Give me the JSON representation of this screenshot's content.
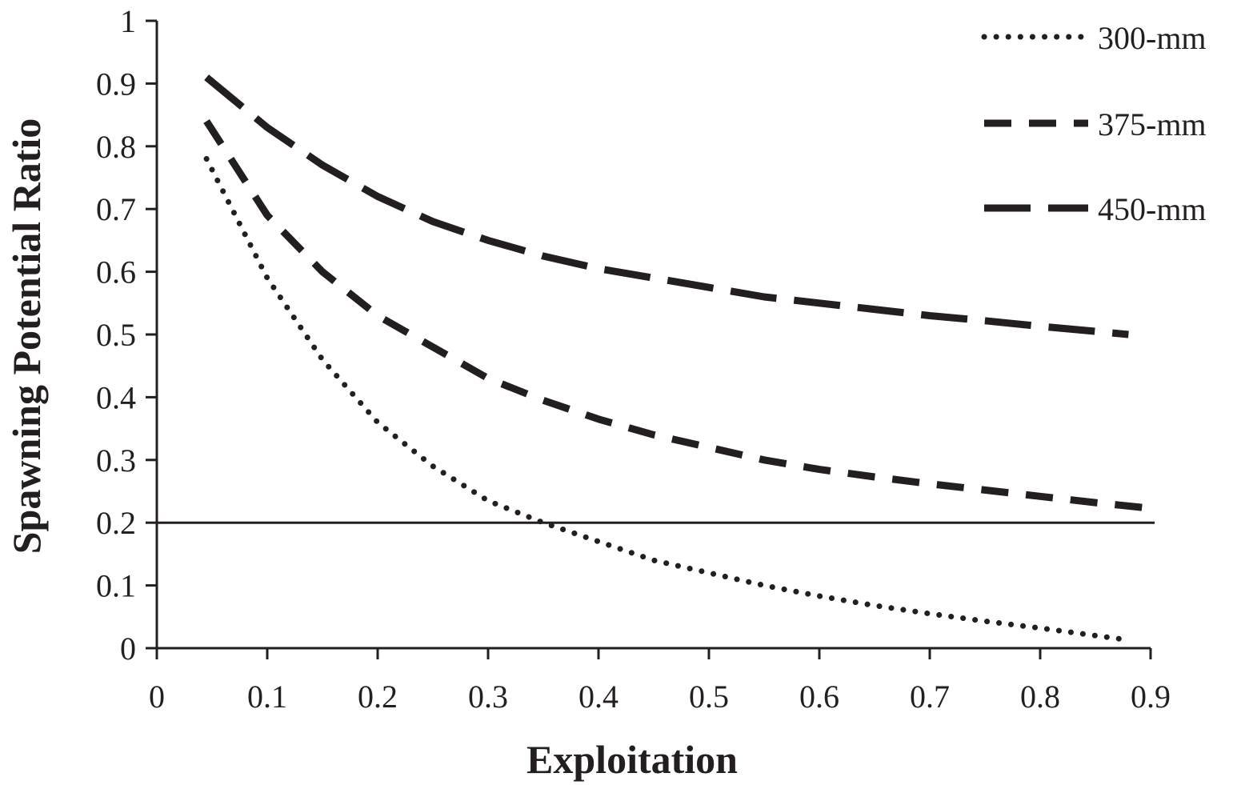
{
  "chart_data": {
    "type": "line",
    "xlabel": "Exploitation",
    "ylabel": "Spawning Potential Ratio",
    "xlim": [
      0,
      0.9
    ],
    "ylim": [
      0,
      1
    ],
    "x_ticks": [
      "0",
      "0.1",
      "0.2",
      "0.3",
      "0.4",
      "0.5",
      "0.6",
      "0.7",
      "0.8",
      "0.9"
    ],
    "y_ticks": [
      "0",
      "0.1",
      "0.2",
      "0.3",
      "0.4",
      "0.5",
      "0.6",
      "0.7",
      "0.8",
      "0.9",
      "1"
    ],
    "grid": false,
    "legend_position": "top-right",
    "reference_line": {
      "y": 0.2
    },
    "series": [
      {
        "name": "300-mm",
        "style": "dotted",
        "color": "#231f20",
        "x": [
          0.045,
          0.1,
          0.15,
          0.2,
          0.25,
          0.3,
          0.35,
          0.4,
          0.45,
          0.5,
          0.55,
          0.6,
          0.65,
          0.7,
          0.75,
          0.8,
          0.85,
          0.88
        ],
        "y": [
          0.78,
          0.59,
          0.46,
          0.36,
          0.29,
          0.235,
          0.2,
          0.17,
          0.14,
          0.12,
          0.1,
          0.083,
          0.068,
          0.055,
          0.043,
          0.032,
          0.02,
          0.013
        ]
      },
      {
        "name": "375-mm",
        "style": "dashed",
        "color": "#231f20",
        "x": [
          0.045,
          0.1,
          0.15,
          0.2,
          0.25,
          0.3,
          0.35,
          0.4,
          0.45,
          0.5,
          0.55,
          0.6,
          0.65,
          0.7,
          0.75,
          0.8,
          0.85,
          0.9
        ],
        "y": [
          0.84,
          0.69,
          0.6,
          0.53,
          0.48,
          0.43,
          0.395,
          0.365,
          0.34,
          0.32,
          0.3,
          0.285,
          0.273,
          0.262,
          0.252,
          0.242,
          0.232,
          0.223
        ]
      },
      {
        "name": "450-mm",
        "style": "long-dashed",
        "color": "#231f20",
        "x": [
          0.045,
          0.1,
          0.15,
          0.2,
          0.25,
          0.3,
          0.35,
          0.4,
          0.45,
          0.5,
          0.55,
          0.6,
          0.65,
          0.7,
          0.75,
          0.8,
          0.85,
          0.88
        ],
        "y": [
          0.91,
          0.83,
          0.77,
          0.72,
          0.68,
          0.65,
          0.625,
          0.605,
          0.59,
          0.575,
          0.56,
          0.55,
          0.54,
          0.53,
          0.522,
          0.513,
          0.505,
          0.5
        ]
      }
    ]
  }
}
